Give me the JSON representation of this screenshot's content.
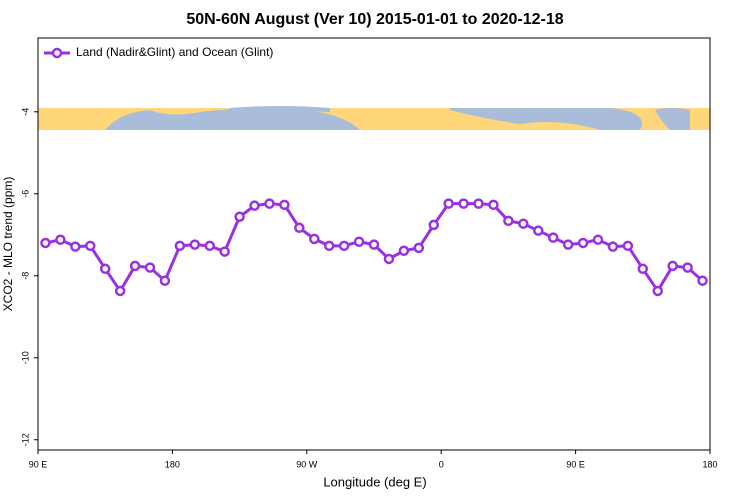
{
  "chart_data": {
    "type": "line",
    "title": "50N-60N August (Ver 10)   2015-01-01 to 2020-12-18",
    "x_label": "Longitude (deg E)",
    "y_label": "XCO2 - MLO trend (ppm)",
    "x": [
      95,
      105,
      115,
      125,
      135,
      145,
      155,
      165,
      175,
      185,
      195,
      205,
      215,
      225,
      235,
      245,
      255,
      265,
      275,
      285,
      295,
      305,
      315,
      325,
      335,
      345,
      355,
      365,
      375,
      385,
      395,
      405,
      415,
      425,
      435,
      445,
      455,
      465,
      475,
      485,
      495,
      505,
      515,
      525,
      535
    ],
    "series": [
      {
        "name": "Land (Nadir&Glint) and Ocean (Glint)",
        "color": "#9b30e0",
        "values": [
          -7.2,
          -7.12,
          -7.29,
          -7.27,
          -7.83,
          -8.37,
          -7.76,
          -7.8,
          -8.12,
          -7.27,
          -7.24,
          -7.27,
          -7.41,
          -6.56,
          -6.29,
          -6.24,
          -6.27,
          -6.83,
          -7.1,
          -7.27,
          -7.27,
          -7.17,
          -7.24,
          -7.59,
          -7.39,
          -7.32,
          -6.76,
          -6.24,
          -6.24,
          -6.24,
          -6.27,
          -6.66,
          -6.73,
          -6.9,
          -7.07,
          -7.24,
          -7.2,
          -7.12,
          -7.29,
          -7.27,
          -7.83,
          -8.37,
          -7.76,
          -7.8,
          -8.12
        ]
      }
    ],
    "xlim": [
      90,
      540
    ],
    "xticks": [
      {
        "value": 90,
        "label": "90 E"
      },
      180,
      {
        "value": 270,
        "label": "90 W"
      },
      {
        "value": 360,
        "label": "0"
      },
      {
        "value": 450,
        "label": "90 E"
      },
      {
        "value": 540,
        "label": "180"
      }
    ],
    "ylim": [
      -12.25,
      -2.2
    ],
    "yticks": [
      -4,
      -6,
      -8,
      -10,
      -12
    ],
    "legend": "top-left"
  }
}
